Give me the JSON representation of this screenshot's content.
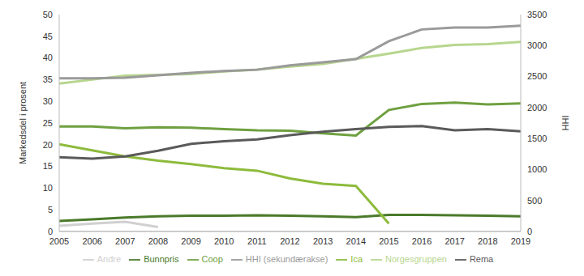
{
  "chart_data": {
    "type": "line",
    "x": [
      2005,
      2006,
      2007,
      2008,
      2009,
      2010,
      2011,
      2012,
      2013,
      2014,
      2015,
      2016,
      2017,
      2018,
      2019
    ],
    "xlim": [
      2005,
      2019
    ],
    "xticks": [
      2005,
      2006,
      2007,
      2008,
      2009,
      2010,
      2011,
      2012,
      2013,
      2014,
      2015,
      2016,
      2017,
      2018,
      2019
    ],
    "y_label": "Markedsdel i prosent",
    "y2_label": "HHI",
    "ylim": [
      0,
      50
    ],
    "yticks": [
      0,
      5,
      10,
      15,
      20,
      25,
      30,
      35,
      40,
      45,
      50
    ],
    "y2lim": [
      0,
      3500
    ],
    "y2ticks": [
      0,
      500,
      1000,
      1500,
      2000,
      2500,
      3000,
      3500
    ],
    "grid": false,
    "legend": "bottom",
    "series": [
      {
        "name": "Bunnpris",
        "color": "#4a7a2a",
        "values": [
          2.4,
          2.8,
          3.2,
          3.5,
          3.6,
          3.6,
          3.7,
          3.6,
          3.5,
          3.3,
          3.8,
          3.8,
          3.7,
          3.6,
          3.5
        ]
      },
      {
        "name": "Coop",
        "color": "#6fa040",
        "values": [
          24.2,
          24.2,
          23.8,
          24.0,
          23.9,
          23.6,
          23.3,
          23.2,
          22.6,
          22.1,
          28.0,
          29.4,
          29.7,
          29.3,
          29.5
        ]
      },
      {
        "name": "Ica",
        "color": "#8dbb3c",
        "values": [
          20.1,
          18.7,
          17.3,
          16.3,
          15.5,
          14.6,
          14.0,
          12.2,
          11.0,
          10.5,
          1.8,
          null,
          null,
          null,
          null
        ]
      },
      {
        "name": "Norgesgruppen",
        "color": "#b7d68e",
        "values": [
          34.1,
          35.0,
          35.9,
          36.1,
          36.3,
          36.9,
          37.3,
          38.0,
          38.6,
          39.8,
          41.0,
          42.3,
          43.0,
          43.2,
          43.7
        ]
      },
      {
        "name": "Rema",
        "color": "#5a5a5a",
        "values": [
          17.1,
          16.8,
          17.3,
          18.6,
          20.2,
          20.8,
          21.2,
          22.2,
          23.0,
          23.6,
          24.1,
          24.3,
          23.3,
          23.6,
          23.1
        ]
      },
      {
        "name": "Andre",
        "color": "#d0d0d0",
        "values": [
          1.3,
          1.8,
          2.2,
          1.0,
          null,
          null,
          null,
          null,
          null,
          null,
          null,
          null,
          null,
          null,
          null
        ]
      },
      {
        "name": "HHI (sekundærakse)",
        "color": "#9a9a9a",
        "axis": "y2",
        "values": [
          2470,
          2470,
          2480,
          2520,
          2560,
          2590,
          2610,
          2680,
          2730,
          2780,
          3070,
          3260,
          3290,
          3290,
          3320
        ]
      }
    ]
  }
}
